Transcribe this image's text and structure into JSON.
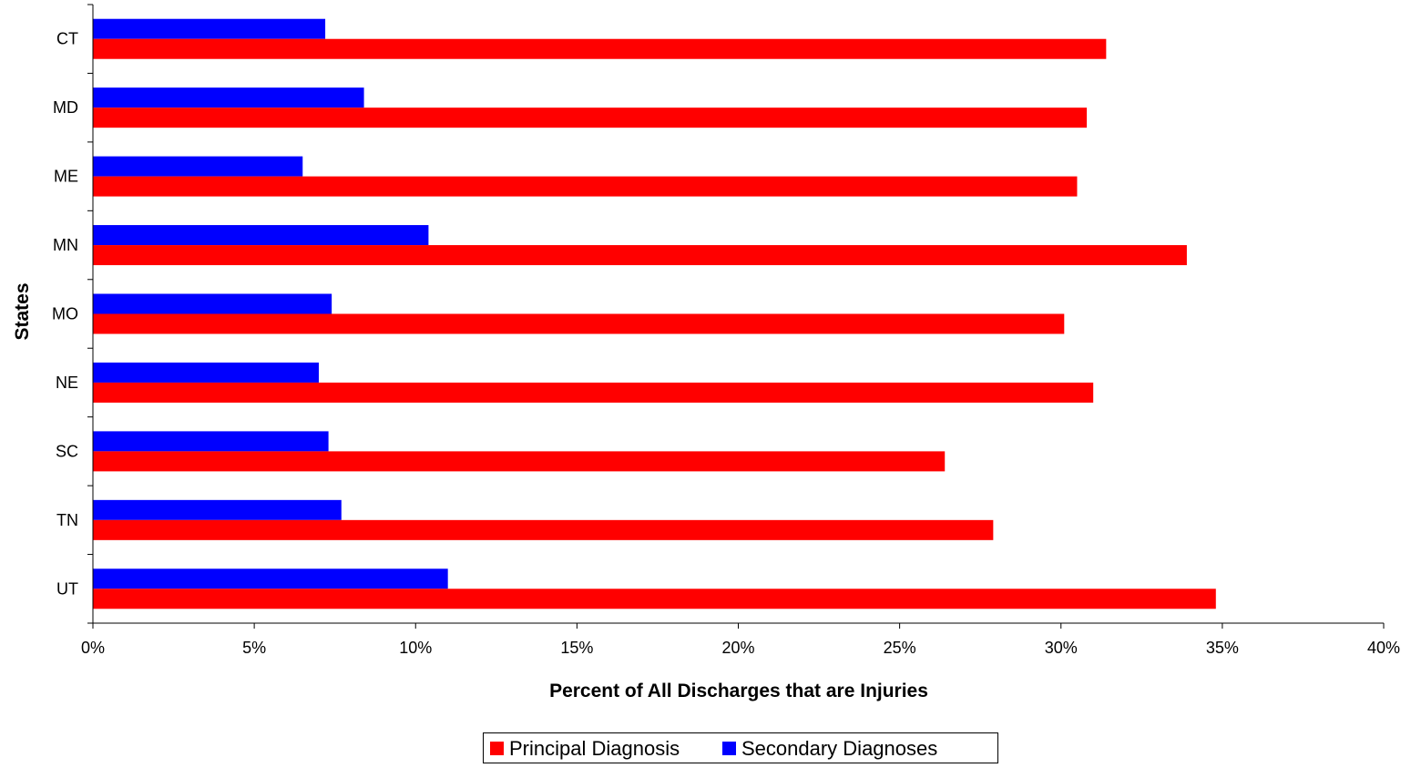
{
  "chart_data": {
    "type": "bar",
    "orientation": "horizontal",
    "title": "",
    "xlabel": "Percent of All Discharges that are Injuries",
    "ylabel": "States",
    "categories": [
      "CT",
      "MD",
      "ME",
      "MN",
      "MO",
      "NE",
      "SC",
      "TN",
      "UT"
    ],
    "series": [
      {
        "name": "Principal Diagnosis",
        "color": "#FF0000",
        "values": [
          31.4,
          30.8,
          30.5,
          33.9,
          30.1,
          31.0,
          26.4,
          27.9,
          34.8
        ]
      },
      {
        "name": "Secondary Diagnoses",
        "color": "#0000FF",
        "values": [
          7.2,
          8.4,
          6.5,
          10.4,
          7.4,
          7.0,
          7.3,
          7.7,
          11.0
        ]
      }
    ],
    "xlim": [
      0,
      40
    ],
    "x_ticks": [
      0,
      5,
      10,
      15,
      20,
      25,
      30,
      35,
      40
    ],
    "x_tick_labels": [
      "0%",
      "5%",
      "10%",
      "15%",
      "20%",
      "25%",
      "30%",
      "35%",
      "40%"
    ],
    "grid": false,
    "legend_position": "bottom"
  }
}
